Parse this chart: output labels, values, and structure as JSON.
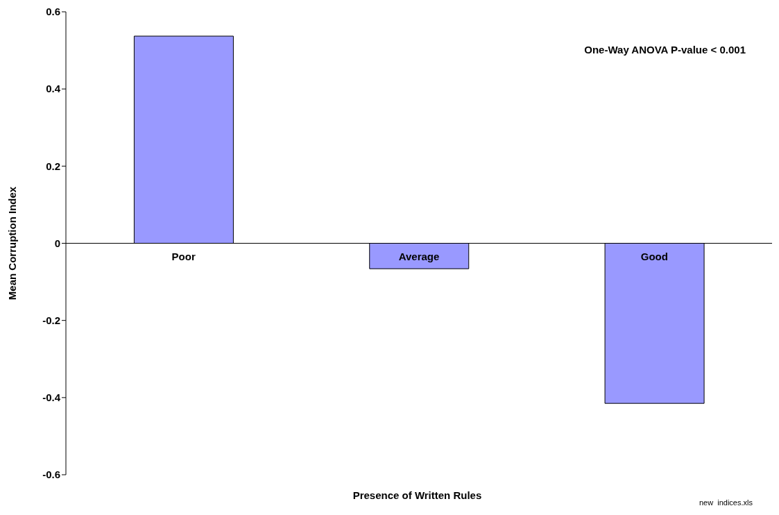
{
  "chart_data": {
    "type": "bar",
    "xlabel": "Presence of Written Rules",
    "ylabel": "Mean Corruption Index",
    "categories": [
      "Poor",
      "Average",
      "Good"
    ],
    "values": [
      0.537,
      -0.066,
      -0.415
    ],
    "color": "#9999ff",
    "ylim": [
      -0.6,
      0.6
    ],
    "yticks": [
      -0.6,
      -0.4,
      -0.2,
      0,
      0.2,
      0.4,
      0.6
    ],
    "grid": false,
    "legend": false,
    "annotations": [
      "One-Way ANOVA P-value < 0.001",
      "new  indices.xls"
    ]
  }
}
